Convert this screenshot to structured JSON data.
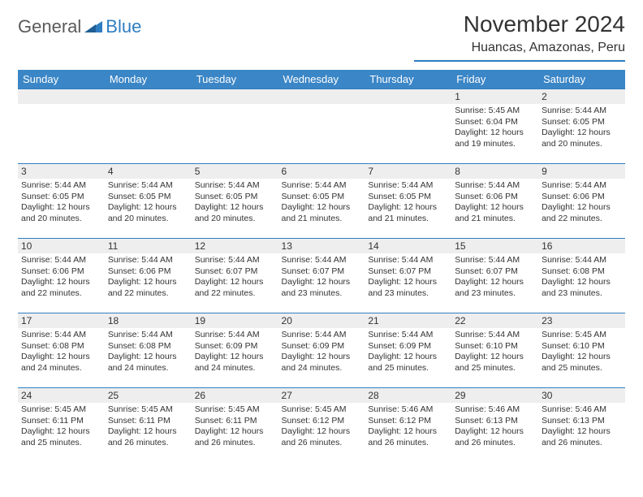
{
  "logo": {
    "part1": "General",
    "part2": "Blue"
  },
  "header": {
    "month_title": "November 2024",
    "location": "Huancas, Amazonas, Peru"
  },
  "colors": {
    "header_bg": "#3b86c6",
    "accent": "#2f7ec2",
    "daynum_bg": "#eeeeee",
    "text": "#333333",
    "logo_gray": "#5a5a5a"
  },
  "weekdays": [
    "Sunday",
    "Monday",
    "Tuesday",
    "Wednesday",
    "Thursday",
    "Friday",
    "Saturday"
  ],
  "weeks": [
    [
      {
        "day": "",
        "sunrise": "",
        "sunset": "",
        "daylight": ""
      },
      {
        "day": "",
        "sunrise": "",
        "sunset": "",
        "daylight": ""
      },
      {
        "day": "",
        "sunrise": "",
        "sunset": "",
        "daylight": ""
      },
      {
        "day": "",
        "sunrise": "",
        "sunset": "",
        "daylight": ""
      },
      {
        "day": "",
        "sunrise": "",
        "sunset": "",
        "daylight": ""
      },
      {
        "day": "1",
        "sunrise": "Sunrise: 5:45 AM",
        "sunset": "Sunset: 6:04 PM",
        "daylight": "Daylight: 12 hours and 19 minutes."
      },
      {
        "day": "2",
        "sunrise": "Sunrise: 5:44 AM",
        "sunset": "Sunset: 6:05 PM",
        "daylight": "Daylight: 12 hours and 20 minutes."
      }
    ],
    [
      {
        "day": "3",
        "sunrise": "Sunrise: 5:44 AM",
        "sunset": "Sunset: 6:05 PM",
        "daylight": "Daylight: 12 hours and 20 minutes."
      },
      {
        "day": "4",
        "sunrise": "Sunrise: 5:44 AM",
        "sunset": "Sunset: 6:05 PM",
        "daylight": "Daylight: 12 hours and 20 minutes."
      },
      {
        "day": "5",
        "sunrise": "Sunrise: 5:44 AM",
        "sunset": "Sunset: 6:05 PM",
        "daylight": "Daylight: 12 hours and 20 minutes."
      },
      {
        "day": "6",
        "sunrise": "Sunrise: 5:44 AM",
        "sunset": "Sunset: 6:05 PM",
        "daylight": "Daylight: 12 hours and 21 minutes."
      },
      {
        "day": "7",
        "sunrise": "Sunrise: 5:44 AM",
        "sunset": "Sunset: 6:05 PM",
        "daylight": "Daylight: 12 hours and 21 minutes."
      },
      {
        "day": "8",
        "sunrise": "Sunrise: 5:44 AM",
        "sunset": "Sunset: 6:06 PM",
        "daylight": "Daylight: 12 hours and 21 minutes."
      },
      {
        "day": "9",
        "sunrise": "Sunrise: 5:44 AM",
        "sunset": "Sunset: 6:06 PM",
        "daylight": "Daylight: 12 hours and 22 minutes."
      }
    ],
    [
      {
        "day": "10",
        "sunrise": "Sunrise: 5:44 AM",
        "sunset": "Sunset: 6:06 PM",
        "daylight": "Daylight: 12 hours and 22 minutes."
      },
      {
        "day": "11",
        "sunrise": "Sunrise: 5:44 AM",
        "sunset": "Sunset: 6:06 PM",
        "daylight": "Daylight: 12 hours and 22 minutes."
      },
      {
        "day": "12",
        "sunrise": "Sunrise: 5:44 AM",
        "sunset": "Sunset: 6:07 PM",
        "daylight": "Daylight: 12 hours and 22 minutes."
      },
      {
        "day": "13",
        "sunrise": "Sunrise: 5:44 AM",
        "sunset": "Sunset: 6:07 PM",
        "daylight": "Daylight: 12 hours and 23 minutes."
      },
      {
        "day": "14",
        "sunrise": "Sunrise: 5:44 AM",
        "sunset": "Sunset: 6:07 PM",
        "daylight": "Daylight: 12 hours and 23 minutes."
      },
      {
        "day": "15",
        "sunrise": "Sunrise: 5:44 AM",
        "sunset": "Sunset: 6:07 PM",
        "daylight": "Daylight: 12 hours and 23 minutes."
      },
      {
        "day": "16",
        "sunrise": "Sunrise: 5:44 AM",
        "sunset": "Sunset: 6:08 PM",
        "daylight": "Daylight: 12 hours and 23 minutes."
      }
    ],
    [
      {
        "day": "17",
        "sunrise": "Sunrise: 5:44 AM",
        "sunset": "Sunset: 6:08 PM",
        "daylight": "Daylight: 12 hours and 24 minutes."
      },
      {
        "day": "18",
        "sunrise": "Sunrise: 5:44 AM",
        "sunset": "Sunset: 6:08 PM",
        "daylight": "Daylight: 12 hours and 24 minutes."
      },
      {
        "day": "19",
        "sunrise": "Sunrise: 5:44 AM",
        "sunset": "Sunset: 6:09 PM",
        "daylight": "Daylight: 12 hours and 24 minutes."
      },
      {
        "day": "20",
        "sunrise": "Sunrise: 5:44 AM",
        "sunset": "Sunset: 6:09 PM",
        "daylight": "Daylight: 12 hours and 24 minutes."
      },
      {
        "day": "21",
        "sunrise": "Sunrise: 5:44 AM",
        "sunset": "Sunset: 6:09 PM",
        "daylight": "Daylight: 12 hours and 25 minutes."
      },
      {
        "day": "22",
        "sunrise": "Sunrise: 5:44 AM",
        "sunset": "Sunset: 6:10 PM",
        "daylight": "Daylight: 12 hours and 25 minutes."
      },
      {
        "day": "23",
        "sunrise": "Sunrise: 5:45 AM",
        "sunset": "Sunset: 6:10 PM",
        "daylight": "Daylight: 12 hours and 25 minutes."
      }
    ],
    [
      {
        "day": "24",
        "sunrise": "Sunrise: 5:45 AM",
        "sunset": "Sunset: 6:11 PM",
        "daylight": "Daylight: 12 hours and 25 minutes."
      },
      {
        "day": "25",
        "sunrise": "Sunrise: 5:45 AM",
        "sunset": "Sunset: 6:11 PM",
        "daylight": "Daylight: 12 hours and 26 minutes."
      },
      {
        "day": "26",
        "sunrise": "Sunrise: 5:45 AM",
        "sunset": "Sunset: 6:11 PM",
        "daylight": "Daylight: 12 hours and 26 minutes."
      },
      {
        "day": "27",
        "sunrise": "Sunrise: 5:45 AM",
        "sunset": "Sunset: 6:12 PM",
        "daylight": "Daylight: 12 hours and 26 minutes."
      },
      {
        "day": "28",
        "sunrise": "Sunrise: 5:46 AM",
        "sunset": "Sunset: 6:12 PM",
        "daylight": "Daylight: 12 hours and 26 minutes."
      },
      {
        "day": "29",
        "sunrise": "Sunrise: 5:46 AM",
        "sunset": "Sunset: 6:13 PM",
        "daylight": "Daylight: 12 hours and 26 minutes."
      },
      {
        "day": "30",
        "sunrise": "Sunrise: 5:46 AM",
        "sunset": "Sunset: 6:13 PM",
        "daylight": "Daylight: 12 hours and 26 minutes."
      }
    ]
  ]
}
